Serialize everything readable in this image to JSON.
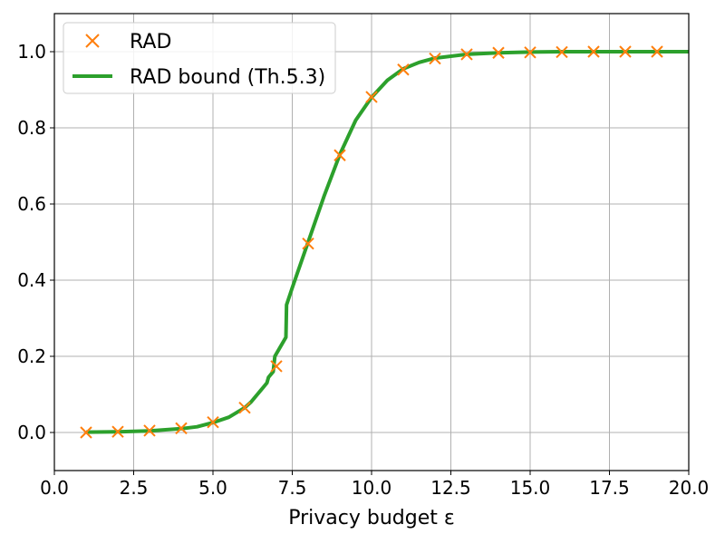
{
  "chart_data": {
    "type": "line",
    "xlabel": "Privacy budget ε",
    "ylabel": "",
    "xlim": [
      0,
      20
    ],
    "ylim": [
      -0.1,
      1.1
    ],
    "grid": true,
    "legend_position": "top-left",
    "x_ticks": [
      "0.0",
      "2.5",
      "5.0",
      "7.5",
      "10.0",
      "12.5",
      "15.0",
      "17.5",
      "20.0"
    ],
    "x_tick_values": [
      0,
      2.5,
      5,
      7.5,
      10,
      12.5,
      15,
      17.5,
      20
    ],
    "y_ticks": [
      "0.0",
      "0.2",
      "0.4",
      "0.6",
      "0.8",
      "1.0"
    ],
    "y_tick_values": [
      0,
      0.2,
      0.4,
      0.6,
      0.8,
      1.0
    ],
    "series": [
      {
        "name": "RAD",
        "kind": "scatter",
        "marker": "x",
        "color": "#ff7f0e",
        "x": [
          1,
          2,
          3,
          4,
          5,
          6,
          7,
          8,
          9,
          10,
          11,
          12,
          13,
          14,
          15,
          16,
          17,
          18,
          19
        ],
        "y": [
          0.0,
          0.002,
          0.005,
          0.011,
          0.027,
          0.065,
          0.174,
          0.496,
          0.728,
          0.881,
          0.953,
          0.982,
          0.993,
          0.997,
          0.998,
          0.999,
          1.0,
          1.0,
          1.0
        ]
      },
      {
        "name": "RAD bound (Th.5.3)",
        "kind": "line",
        "color": "#2ca02c",
        "x": [
          1,
          2,
          3,
          4,
          4.5,
          5,
          5.5,
          6,
          6.2,
          6.3,
          6.4,
          6.5,
          6.6,
          6.7,
          6.75,
          6.9,
          6.95,
          7.3,
          7.32,
          7.5,
          8,
          8.5,
          9,
          9.5,
          10,
          10.5,
          11,
          11.5,
          12,
          13,
          14,
          15,
          16,
          17,
          18,
          19,
          20
        ],
        "y": [
          0.001,
          0.002,
          0.004,
          0.01,
          0.015,
          0.026,
          0.04,
          0.065,
          0.08,
          0.09,
          0.1,
          0.11,
          0.12,
          0.13,
          0.145,
          0.16,
          0.2,
          0.25,
          0.335,
          0.38,
          0.5,
          0.62,
          0.73,
          0.82,
          0.88,
          0.925,
          0.955,
          0.972,
          0.983,
          0.993,
          0.997,
          0.999,
          1.0,
          1.0,
          1.0,
          1.0,
          1.0
        ]
      }
    ]
  }
}
